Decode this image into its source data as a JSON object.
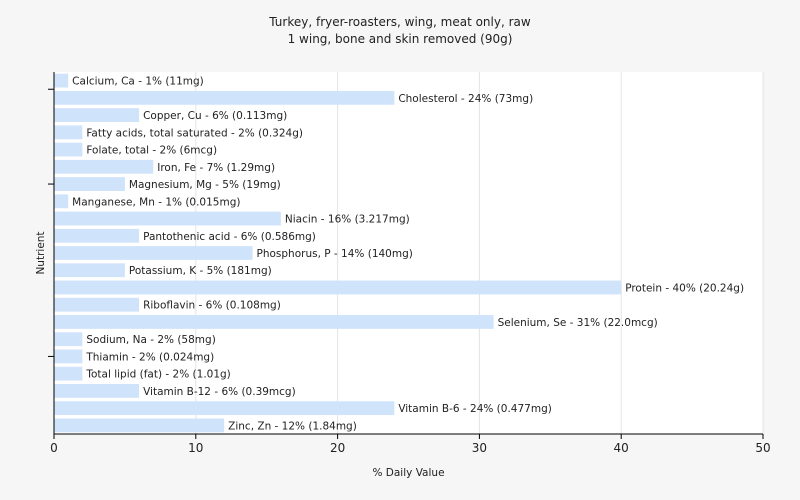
{
  "chart_data": {
    "type": "bar",
    "orientation": "horizontal",
    "title": "Turkey, fryer-roasters, wing, meat only, raw",
    "subtitle": "1 wing, bone and skin removed (90g)",
    "xlabel": "% Daily Value",
    "ylabel": "Nutrient",
    "xlim": [
      0,
      50
    ],
    "xticks": [
      0,
      10,
      20,
      30,
      40,
      50
    ],
    "grid": true,
    "legend": "none",
    "bar_color": "#cfe3fb",
    "categories": [
      "Calcium, Ca",
      "Cholesterol",
      "Copper, Cu",
      "Fatty acids, total saturated",
      "Folate, total",
      "Iron, Fe",
      "Magnesium, Mg",
      "Manganese, Mn",
      "Niacin",
      "Pantothenic acid",
      "Phosphorus, P",
      "Potassium, K",
      "Protein",
      "Riboflavin",
      "Selenium, Se",
      "Sodium, Na",
      "Thiamin",
      "Total lipid (fat)",
      "Vitamin B-12",
      "Vitamin B-6",
      "Zinc, Zn"
    ],
    "values": [
      1,
      24,
      6,
      2,
      2,
      7,
      5,
      1,
      16,
      6,
      14,
      5,
      40,
      6,
      31,
      2,
      2,
      2,
      6,
      24,
      12
    ],
    "labels": [
      "Calcium, Ca - 1% (11mg)",
      "Cholesterol - 24% (73mg)",
      "Copper, Cu - 6% (0.113mg)",
      "Fatty acids, total saturated - 2% (0.324g)",
      "Folate, total - 2% (6mcg)",
      "Iron, Fe - 7% (1.29mg)",
      "Magnesium, Mg - 5% (19mg)",
      "Manganese, Mn - 1% (0.015mg)",
      "Niacin - 16% (3.217mg)",
      "Pantothenic acid - 6% (0.586mg)",
      "Phosphorus, P - 14% (140mg)",
      "Potassium, K - 5% (181mg)",
      "Protein - 40% (20.24g)",
      "Riboflavin - 6% (0.108mg)",
      "Selenium, Se - 31% (22.0mcg)",
      "Sodium, Na - 2% (58mg)",
      "Thiamin - 2% (0.024mg)",
      "Total lipid (fat) - 2% (1.01g)",
      "Vitamin B-12 - 6% (0.39mcg)",
      "Vitamin B-6 - 24% (0.477mg)",
      "Zinc, Zn - 12% (1.84mg)"
    ]
  }
}
